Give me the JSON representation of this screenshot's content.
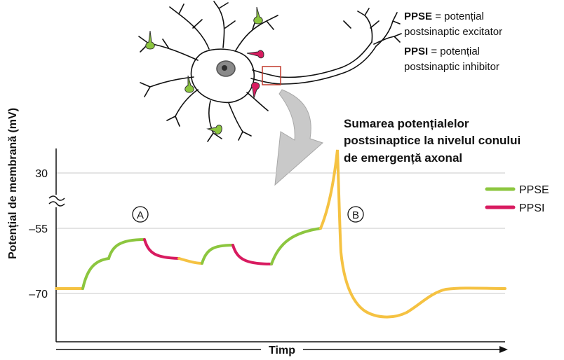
{
  "definitions": {
    "ppse_abbr": "PPSE",
    "ppse_def_1": " = potențial",
    "ppse_def_2": "postsinaptic excitator",
    "ppsi_abbr": "PPSI",
    "ppsi_def_1": " = potențial",
    "ppsi_def_2": "postsinaptic inhibitor"
  },
  "summary_title": [
    "Sumarea potențialelor",
    "postsinaptice la nivelul conului",
    "de emergență axonal"
  ],
  "markers": {
    "a": "A",
    "b": "B"
  },
  "colors": {
    "ppse": "#8cc63f",
    "ppsi": "#d81b60",
    "neutral": "#f5c242",
    "grid": "#c8c8c8",
    "axis": "#111111",
    "arrow": "#c9c9c9",
    "highlight_box": "#c0392b"
  },
  "chart_data": {
    "type": "line",
    "xlabel": "Timp",
    "ylabel": "Potențial de membrană (mV)",
    "yticks": [
      30,
      -55,
      -70
    ],
    "axis_break": "between 30 and -55",
    "grid": true,
    "legend": {
      "placement": "right",
      "items": [
        {
          "name": "PPSE",
          "color": "#8cc63f"
        },
        {
          "name": "PPSI",
          "color": "#d81b60"
        }
      ]
    },
    "series": [
      {
        "name": "PPSE",
        "kind": "excitatory",
        "color": "#8cc63f"
      },
      {
        "name": "PPSI",
        "kind": "inhibitory",
        "color": "#d81b60"
      }
    ]
  }
}
